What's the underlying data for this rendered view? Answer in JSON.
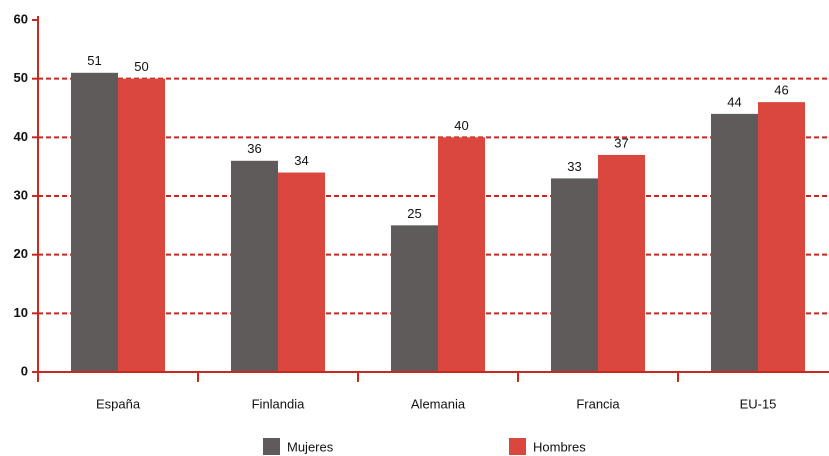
{
  "chart_data": {
    "type": "bar",
    "categories": [
      "España",
      "Finlandia",
      "Alemania",
      "Francia",
      "EU-15"
    ],
    "series": [
      {
        "name": "Mujeres",
        "color": "#5f5b5a",
        "values": [
          51,
          36,
          25,
          33,
          44
        ]
      },
      {
        "name": "Hombres",
        "color": "#d9473f",
        "values": [
          50,
          34,
          40,
          37,
          46
        ]
      }
    ],
    "ylim": [
      0,
      60
    ],
    "yticks": [
      0,
      10,
      20,
      30,
      40,
      50,
      60
    ],
    "grid": true,
    "legend": "bottom"
  }
}
